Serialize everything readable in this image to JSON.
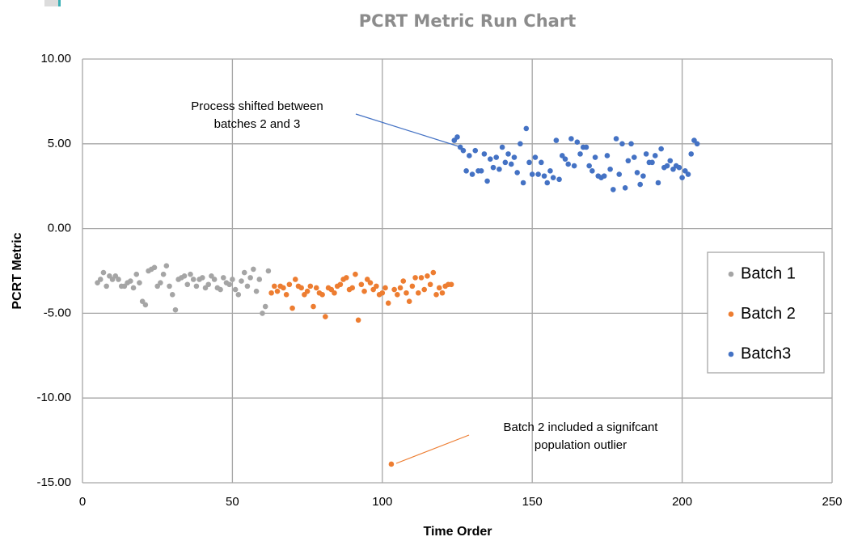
{
  "chart_data": {
    "type": "scatter",
    "title": "PCRT Metric Run Chart",
    "x_label": "Time Order",
    "y_label": "PCRT Metric",
    "xlim": [
      0,
      250
    ],
    "xticks": [
      0,
      50,
      100,
      150,
      200,
      250
    ],
    "ylim": [
      -15,
      10
    ],
    "yticks": [
      {
        "value": -15,
        "label": "-15.00"
      },
      {
        "value": -10,
        "label": "-10.00"
      },
      {
        "value": -5,
        "label": "-5.00"
      },
      {
        "value": 0,
        "label": "0.00"
      },
      {
        "value": 5,
        "label": "5.00"
      },
      {
        "value": 10,
        "label": "10.00"
      }
    ],
    "grid": true,
    "legend": "right",
    "annotations": [
      {
        "lines": [
          "Process shifted between",
          "batches 2 and 3"
        ]
      },
      {
        "lines": [
          "Batch 2 included a signifcant",
          "population outlier"
        ]
      }
    ],
    "series": [
      {
        "name": "Batch 1",
        "color": "#a5a5a5",
        "x": [
          5,
          6,
          7,
          8,
          9,
          10,
          11,
          12,
          13,
          14,
          15,
          16,
          17,
          18,
          19,
          20,
          21,
          22,
          23,
          24,
          25,
          26,
          27,
          28,
          29,
          30,
          31,
          32,
          33,
          34,
          35,
          36,
          37,
          38,
          39,
          40,
          41,
          42,
          43,
          44,
          45,
          46,
          47,
          48,
          49,
          50,
          51,
          52,
          53,
          54,
          55,
          56,
          57,
          58,
          59,
          60,
          61,
          62
        ],
        "values": [
          -3.2,
          -3.0,
          -2.6,
          -3.4,
          -2.8,
          -3.0,
          -2.8,
          -3.0,
          -3.4,
          -3.4,
          -3.2,
          -3.1,
          -3.5,
          -2.7,
          -3.2,
          -4.3,
          -4.5,
          -2.5,
          -2.4,
          -2.3,
          -3.4,
          -3.2,
          -2.7,
          -2.2,
          -3.4,
          -3.9,
          -4.8,
          -3.0,
          -2.9,
          -2.8,
          -3.3,
          -2.7,
          -3.0,
          -3.4,
          -3.0,
          -2.9,
          -3.5,
          -3.3,
          -2.8,
          -3.0,
          -3.5,
          -3.6,
          -2.9,
          -3.2,
          -3.3,
          -3.0,
          -3.6,
          -3.9,
          -3.1,
          -2.6,
          -3.4,
          -2.9,
          -2.4,
          -3.7,
          -3.0,
          -5.0,
          -4.6,
          -2.5
        ]
      },
      {
        "name": "Batch 2",
        "color": "#ed7d31",
        "x": [
          63,
          64,
          65,
          66,
          67,
          68,
          69,
          70,
          71,
          72,
          73,
          74,
          75,
          76,
          77,
          78,
          79,
          80,
          81,
          82,
          83,
          84,
          85,
          86,
          87,
          88,
          89,
          90,
          91,
          92,
          93,
          94,
          95,
          96,
          97,
          98,
          99,
          100,
          101,
          102,
          103,
          104,
          105,
          106,
          107,
          108,
          109,
          110,
          111,
          112,
          113,
          114,
          115,
          116,
          117,
          118,
          119,
          120,
          121,
          122,
          123
        ],
        "values": [
          -3.8,
          -3.4,
          -3.7,
          -3.4,
          -3.5,
          -3.9,
          -3.3,
          -4.7,
          -3.0,
          -3.4,
          -3.5,
          -3.9,
          -3.7,
          -3.4,
          -4.6,
          -3.5,
          -3.8,
          -3.9,
          -5.2,
          -3.5,
          -3.6,
          -3.8,
          -3.4,
          -3.3,
          -3.0,
          -2.9,
          -3.6,
          -3.5,
          -2.7,
          -5.4,
          -3.3,
          -3.7,
          -3.0,
          -3.2,
          -3.6,
          -3.4,
          -3.9,
          -3.8,
          -3.5,
          -4.4,
          -13.9,
          -3.6,
          -3.9,
          -3.5,
          -3.1,
          -3.8,
          -4.3,
          -3.4,
          -2.9,
          -3.8,
          -2.9,
          -3.6,
          -2.8,
          -3.3,
          -2.6,
          -3.9,
          -3.5,
          -3.8,
          -3.4,
          -3.3,
          -3.3
        ]
      },
      {
        "name": "Batch3",
        "color": "#4472c4",
        "x": [
          124,
          125,
          126,
          127,
          128,
          129,
          130,
          131,
          132,
          133,
          134,
          135,
          136,
          137,
          138,
          139,
          140,
          141,
          142,
          143,
          144,
          145,
          146,
          147,
          148,
          149,
          150,
          151,
          152,
          153,
          154,
          155,
          156,
          157,
          158,
          159,
          160,
          161,
          162,
          163,
          164,
          165,
          166,
          167,
          168,
          169,
          170,
          171,
          172,
          173,
          174,
          175,
          176,
          177,
          178,
          179,
          180,
          181,
          182,
          183,
          184,
          185,
          186,
          187,
          188,
          189,
          190,
          191,
          192,
          193,
          194,
          195,
          196,
          197,
          198,
          199,
          200,
          201,
          202,
          203,
          204,
          205
        ],
        "values": [
          5.2,
          5.4,
          4.8,
          4.6,
          3.4,
          4.3,
          3.2,
          4.6,
          3.4,
          3.4,
          4.4,
          2.8,
          4.1,
          3.6,
          4.2,
          3.5,
          4.8,
          3.9,
          4.4,
          3.8,
          4.2,
          3.3,
          5.0,
          2.7,
          5.9,
          3.9,
          3.2,
          4.2,
          3.2,
          3.9,
          3.1,
          2.7,
          3.4,
          3.0,
          5.2,
          2.9,
          4.3,
          4.1,
          3.8,
          5.3,
          3.7,
          5.1,
          4.4,
          4.8,
          4.8,
          3.7,
          3.4,
          4.2,
          3.1,
          3.0,
          3.1,
          4.3,
          3.5,
          2.3,
          5.3,
          3.2,
          5.0,
          2.4,
          4.0,
          5.0,
          4.2,
          3.3,
          2.6,
          3.1,
          4.4,
          3.9,
          3.9,
          4.3,
          2.7,
          4.7,
          3.6,
          3.7,
          4.0,
          3.5,
          3.7,
          3.6,
          3.0,
          3.4,
          3.2,
          4.4,
          5.2,
          5.0
        ]
      }
    ]
  }
}
